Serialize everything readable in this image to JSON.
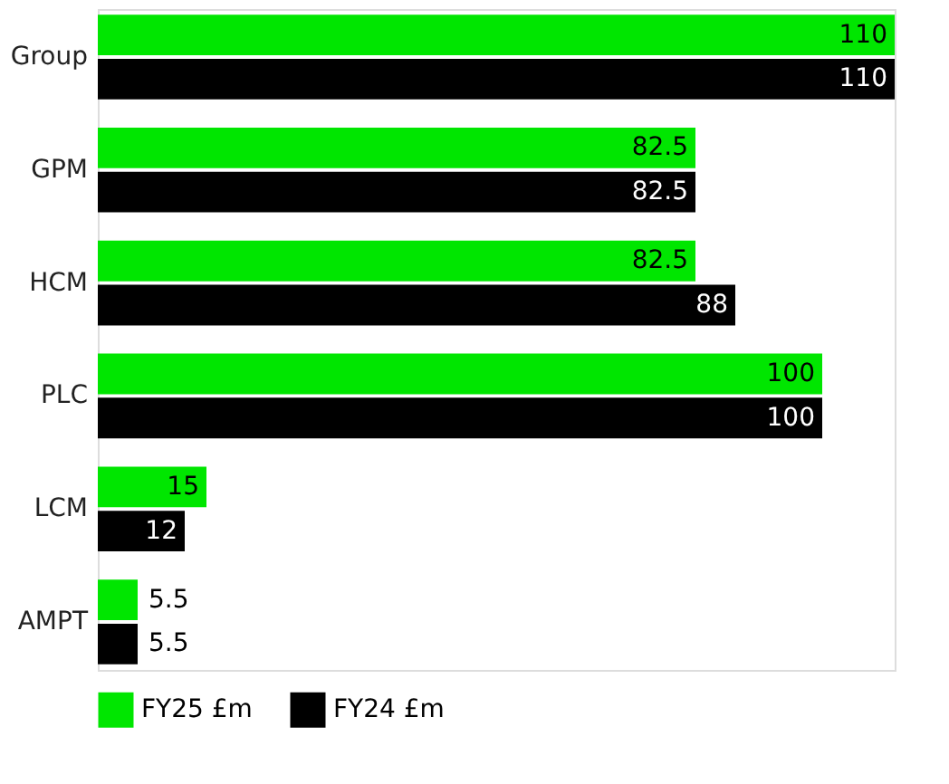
{
  "chart_data": {
    "type": "bar",
    "orientation": "horizontal",
    "categories": [
      "Group",
      "GPM",
      "HCM",
      "PLC",
      "LCM",
      "AMPT"
    ],
    "series": [
      {
        "name": "FY25 £m",
        "color": "#00e600",
        "values": [
          110,
          82.5,
          82.5,
          100,
          15,
          5.5
        ]
      },
      {
        "name": "FY24 £m",
        "color": "#000000",
        "values": [
          110,
          82.5,
          88,
          100,
          12,
          5.5
        ]
      }
    ],
    "data_labels": true,
    "grid": false,
    "legend": "bottom left"
  }
}
